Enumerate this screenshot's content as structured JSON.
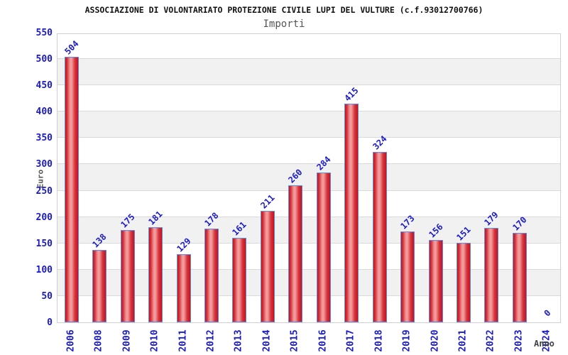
{
  "chart_data": {
    "type": "bar",
    "title": "ASSOCIAZIONE DI VOLONTARIATO PROTEZIONE CIVILE LUPI DEL VULTURE (c.f.93012700766)",
    "subtitle": "Importi",
    "xlabel": "Anno",
    "ylabel": "Euro",
    "categories": [
      "2006",
      "2008",
      "2009",
      "2010",
      "2011",
      "2012",
      "2013",
      "2014",
      "2015",
      "2016",
      "2017",
      "2018",
      "2019",
      "2020",
      "2021",
      "2022",
      "2023",
      "2024"
    ],
    "values": [
      504,
      138,
      175,
      181,
      129,
      178,
      161,
      211,
      260,
      284,
      415,
      324,
      173,
      156,
      151,
      179,
      170,
      0
    ],
    "ylim": [
      0,
      550
    ],
    "ytick_step": 50,
    "yticks": [
      0,
      50,
      100,
      150,
      200,
      250,
      300,
      350,
      400,
      450,
      500,
      550
    ],
    "legend": "none",
    "grid": "horizontal gridlines with alternating gray bands",
    "value_labels": "blue, rotated 45deg above each bar",
    "xtick_style": "blue, rotated 90deg",
    "colors": {
      "bar_fill_dark": "#c9101f",
      "bar_fill_mid": "#d4323a",
      "bar_fill_light": "#f39a9b",
      "bar_border": "#5b8fe0",
      "label_blue": "#1a1acc",
      "axis_title_gray": "#555555",
      "stripe_gray": "#f1f1f1",
      "gridline_gray": "#d9d9d9",
      "title_color": "#111111"
    }
  }
}
